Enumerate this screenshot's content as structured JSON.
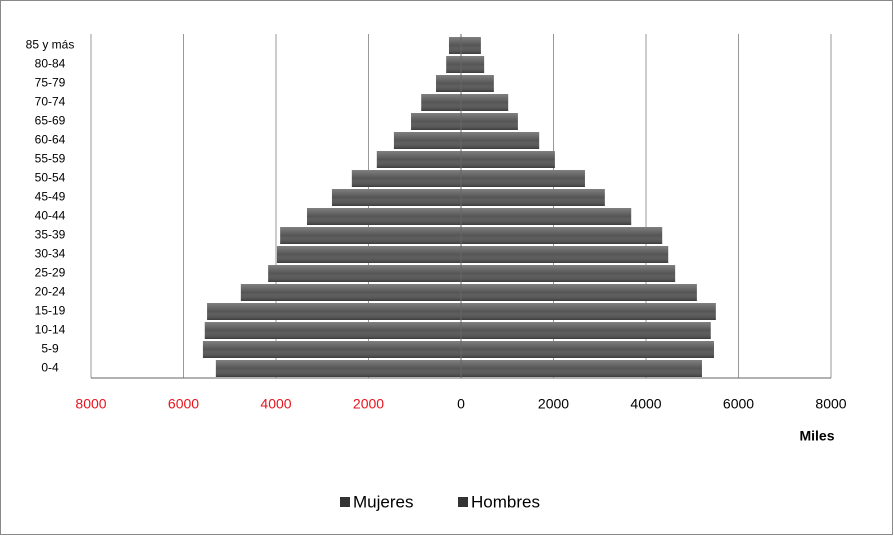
{
  "chart_data": {
    "type": "pyramid",
    "categories": [
      "0-4",
      "5-9",
      "10-14",
      "15-19",
      "20-24",
      "25-29",
      "30-34",
      "35-39",
      "40-44",
      "45-49",
      "50-54",
      "55-59",
      "60-64",
      "65-69",
      "70-74",
      "75-79",
      "80-84",
      "85 y más"
    ],
    "series": [
      {
        "name": "Mujeres",
        "color": "#555555",
        "values": [
          -5300,
          -5580,
          -5540,
          -5490,
          -4760,
          -4170,
          -3980,
          -3910,
          -3330,
          -2790,
          -2360,
          -1820,
          -1450,
          -1080,
          -860,
          -540,
          -320,
          -260
        ]
      },
      {
        "name": "Hombres",
        "color": "#555555",
        "values": [
          5210,
          5470,
          5400,
          5510,
          5100,
          4630,
          4480,
          4350,
          3680,
          3110,
          2680,
          2030,
          1690,
          1230,
          1020,
          710,
          500,
          430
        ]
      }
    ],
    "xlabel": "Miles",
    "xlim": [
      -8000,
      8000
    ],
    "xticks": [
      {
        "value": -8000,
        "label": "8000"
      },
      {
        "value": -6000,
        "label": "6000"
      },
      {
        "value": -4000,
        "label": "4000"
      },
      {
        "value": -2000,
        "label": "2000"
      },
      0,
      2000,
      4000,
      6000,
      8000
    ],
    "negative_tick_color": "#e8141e",
    "grid": true,
    "legend": "bottom"
  }
}
